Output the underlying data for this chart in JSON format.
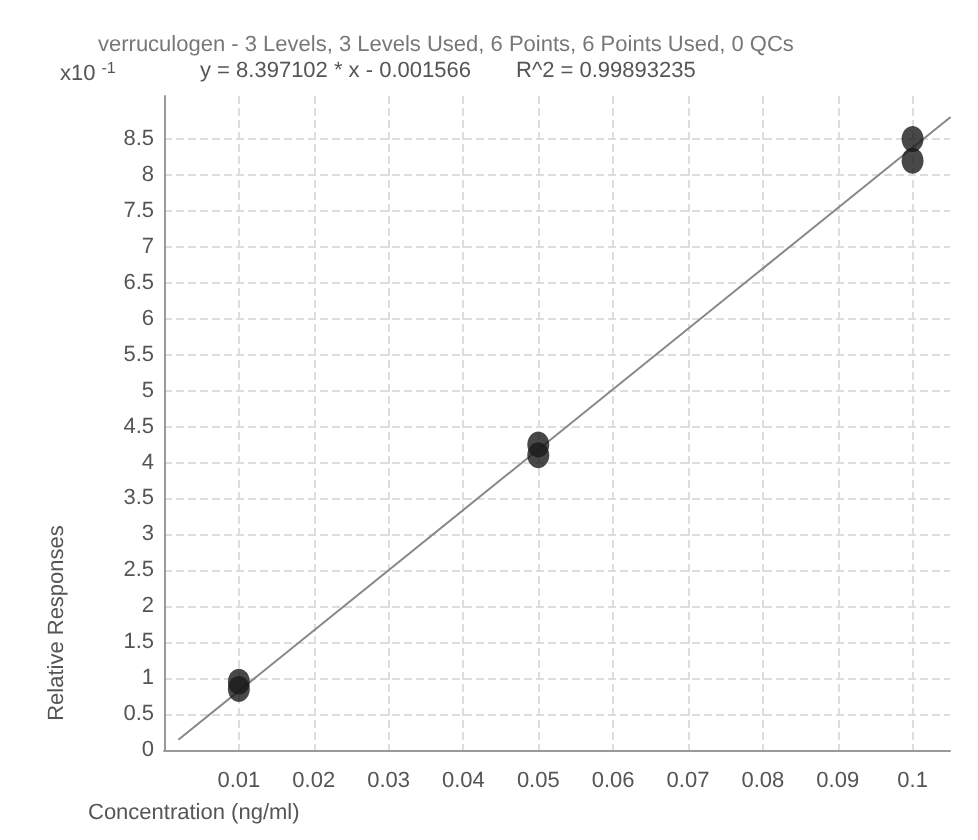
{
  "chart_data": {
    "type": "scatter",
    "title": "verruculogen - 3 Levels, 3 Levels Used, 6 Points, 6 Points Used, 0 QCs",
    "xlabel": "Concentration (ng/ml)",
    "ylabel": "Relative Responses",
    "annotations": [
      "x10$^{-1}$",
      "y = 8.397102 * x - 0.001566",
      "R^2 = 0.99893235"
    ],
    "xlim": [
      0,
      0.105
    ],
    "xticks": [
      0.01,
      0.02,
      0.03,
      0.04,
      0.05,
      0.06,
      0.07,
      0.08,
      0.09,
      0.1
    ],
    "ylim": [
      0,
      9.1
    ],
    "yticks": [
      0,
      0.5,
      1,
      1.5,
      2,
      2.5,
      3,
      3.5,
      4,
      4.5,
      5,
      5.5,
      6,
      6.5,
      7,
      7.5,
      8,
      8.5
    ],
    "grid": true,
    "marker": "circle",
    "series": [
      {
        "type": "scatter",
        "color": "#1a1a1a",
        "x": [
          0.01,
          0.01,
          0.05,
          0.05,
          0.1,
          0.1
        ],
        "values": [
          0.95,
          0.85,
          4.25,
          4.1,
          8.5,
          8.2
        ]
      },
      {
        "type": "line",
        "color": "#888888",
        "marker": "none",
        "x": [
          0.002,
          0.105
        ],
        "values": [
          0.15,
          8.8
        ]
      }
    ]
  }
}
